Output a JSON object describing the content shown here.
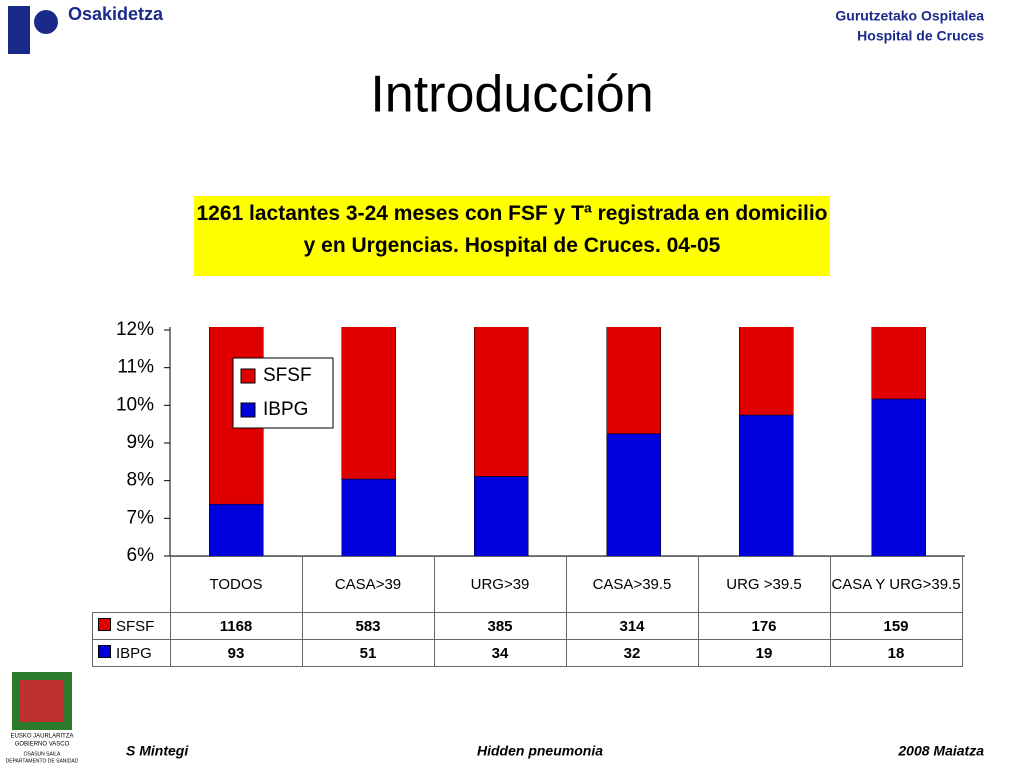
{
  "header": {
    "brand": "Osakidetza",
    "hospital": [
      "Gurutzetako Ospitalea",
      "Hospital de Cruces"
    ]
  },
  "title": "Introducción",
  "subtitle": "1261 lactantes 3-24 meses con FSF y Tª registrada en domicilio y en Urgencias. Hospital de Cruces. 04-05",
  "chart_data": {
    "type": "bar",
    "stacking": "percent",
    "categories": [
      "TODOS",
      "CASA>39",
      "URG>39",
      "CASA>39.5",
      "URG >39.5",
      "CASA Y URG>39.5"
    ],
    "series": [
      {
        "name": "SFSF",
        "color": "#e00000",
        "values": [
          1168,
          583,
          385,
          314,
          176,
          159
        ]
      },
      {
        "name": "IBPG",
        "color": "#0000dd",
        "values": [
          93,
          51,
          34,
          32,
          19,
          18
        ]
      }
    ],
    "ylim": [
      6,
      12
    ],
    "yticks": [
      {
        "value": 6,
        "label": "6%"
      },
      {
        "value": 7,
        "label": "7%"
      },
      {
        "value": 8,
        "label": "8%"
      },
      {
        "value": 9,
        "label": "9%"
      },
      {
        "value": 10,
        "label": "10%"
      },
      {
        "value": 11,
        "label": "11%"
      },
      {
        "value": 12,
        "label": "12%"
      }
    ],
    "legend": "upper left"
  },
  "footer": {
    "author": "S Mintegi",
    "topic": "Hidden pneumonia",
    "date": "2008 Maiatza"
  },
  "emblem": [
    "EUSKO JAURLARITZA",
    "GOBIERNO VASCO",
    "OSASUN SAILA",
    "DEPARTAMENTO DE SANIDAD"
  ]
}
